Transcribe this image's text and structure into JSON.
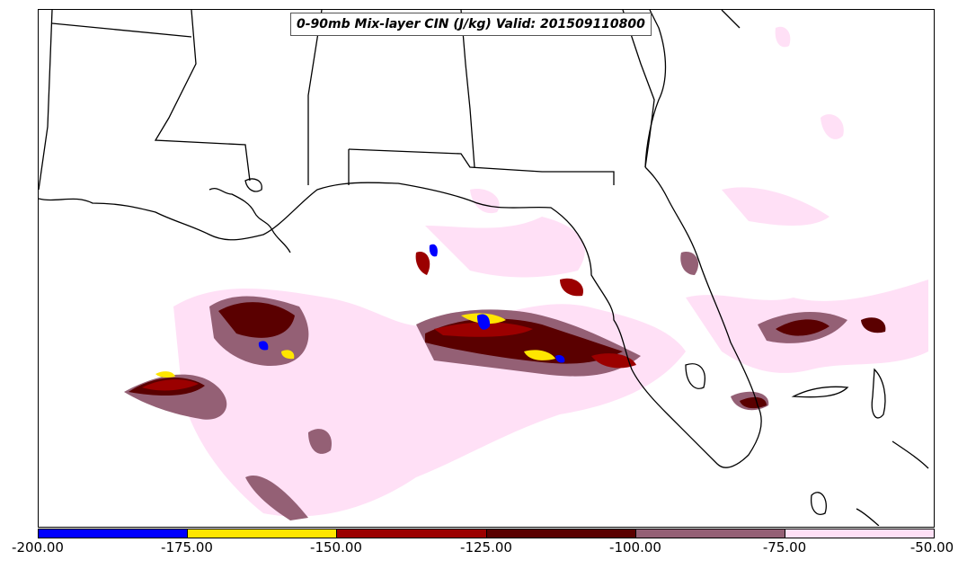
{
  "title": "0-90mb Mix-layer CIN (J/kg) Valid: 201509110800",
  "colorbar": {
    "ticks": [
      "-200.00",
      "-175.00",
      "-150.00",
      "-125.00",
      "-100.00",
      "-75.00",
      "-50.00"
    ],
    "colors": [
      "#0000ff",
      "#ffe600",
      "#9b0000",
      "#5a0000",
      "#946075",
      "#ffe0f6"
    ]
  },
  "legend_classes": [
    {
      "range": [
        -200,
        -175
      ],
      "color": "#0000ff"
    },
    {
      "range": [
        -175,
        -150
      ],
      "color": "#ffe600"
    },
    {
      "range": [
        -150,
        -125
      ],
      "color": "#9b0000"
    },
    {
      "range": [
        -125,
        -100
      ],
      "color": "#5a0000"
    },
    {
      "range": [
        -100,
        -75
      ],
      "color": "#946075"
    },
    {
      "range": [
        -75,
        -50
      ],
      "color": "#ffe0f6"
    }
  ]
}
